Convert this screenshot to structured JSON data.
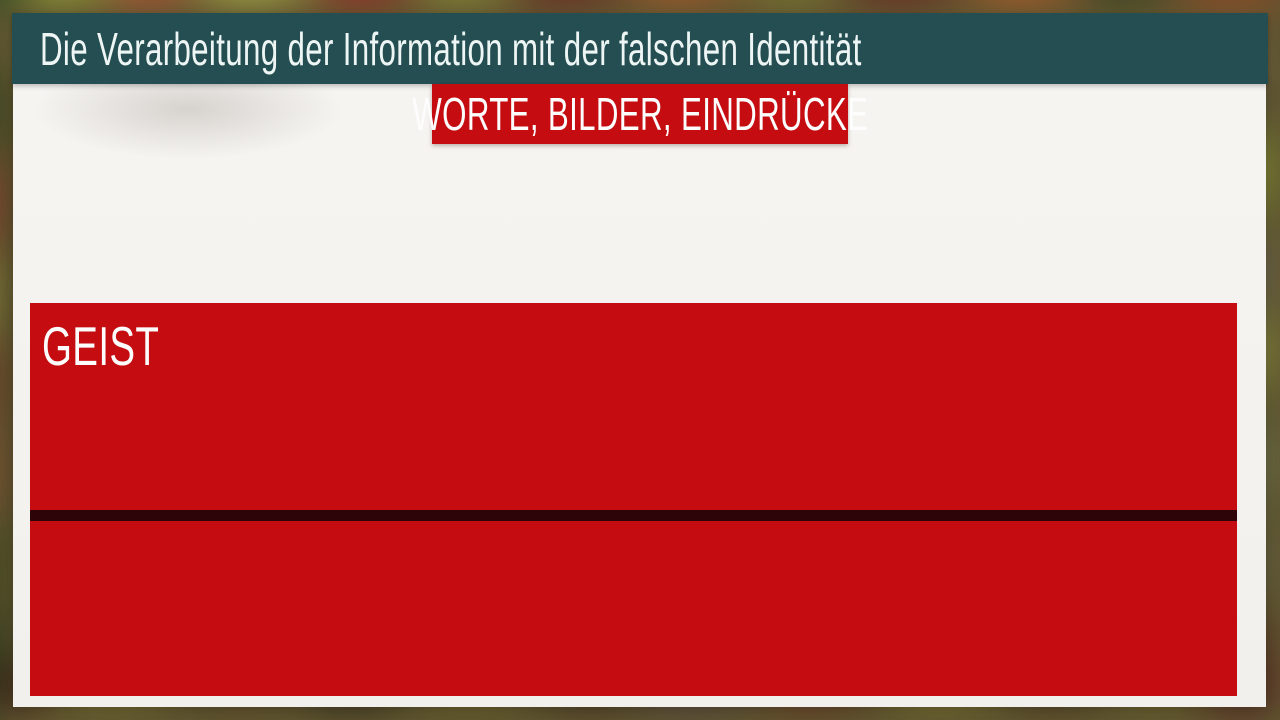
{
  "slide": {
    "title": "Die Verarbeitung der Information mit der falschen Identität",
    "subtitle_badge": "WORTE, BILDER, EINDRÜCKE",
    "panel": {
      "label": "GEIST"
    }
  },
  "colors": {
    "header_bg": "#254e52",
    "accent_red": "#c50c10",
    "divider_dark": "#2d0508",
    "slide_bg": "#f4f2ee",
    "title_text": "#edf6f4",
    "badge_text": "#fdfdfd"
  }
}
